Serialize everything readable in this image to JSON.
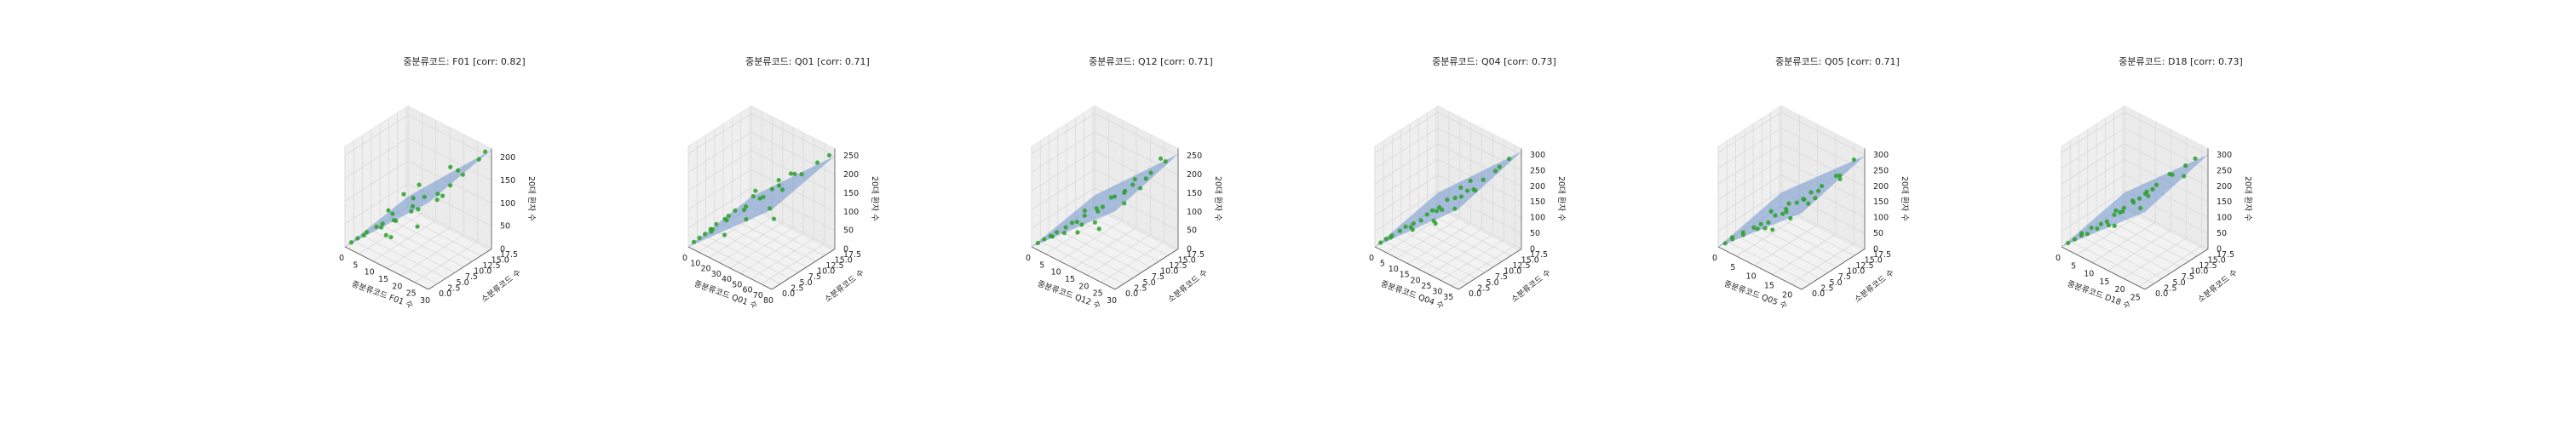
{
  "colors": {
    "points": "#2ca02c",
    "plane": "#6f93cc",
    "pane": "#f2f2f2",
    "grid": "#d9d9d9",
    "axis": "#555555"
  },
  "chart_data": [
    {
      "type": "scatter",
      "title": "중분류코드: F01 [corr: 0.82]",
      "xlabel": "중분류코드 F01 수",
      "ylabel": "소분류코드 수",
      "zlabel": "20대 환자 수",
      "xlim": [
        0,
        30
      ],
      "ylim": [
        0,
        18
      ],
      "zlim": [
        0,
        220
      ],
      "xticks": [
        "0",
        "5",
        "10",
        "15",
        "20",
        "25",
        "30"
      ],
      "yticks": [
        "0.0",
        "2.5",
        "5.0",
        "7.5",
        "10.0",
        "12.5",
        "15.0",
        "17.5"
      ],
      "zticks": [
        "0",
        "50",
        "100",
        "150",
        "200"
      ],
      "plane": {
        "intercept": -5,
        "slope_x": 6.5,
        "slope_y": 1.5
      },
      "points": [
        [
          1,
          1,
          8
        ],
        [
          2,
          2,
          15
        ],
        [
          3,
          3,
          20
        ],
        [
          4,
          3,
          30
        ],
        [
          5,
          5,
          35
        ],
        [
          6,
          6,
          40
        ],
        [
          7,
          8,
          55
        ],
        [
          8,
          4,
          48
        ],
        [
          10,
          6,
          60
        ],
        [
          12,
          5,
          70
        ],
        [
          13,
          9,
          85
        ],
        [
          15,
          7,
          90
        ],
        [
          16,
          10,
          110
        ],
        [
          18,
          12,
          100
        ],
        [
          20,
          5,
          120
        ],
        [
          22,
          9,
          140
        ],
        [
          24,
          11,
          155
        ],
        [
          26,
          13,
          175
        ],
        [
          28,
          16,
          200
        ],
        [
          9,
          14,
          95
        ],
        [
          11,
          3,
          45
        ],
        [
          14,
          2,
          55
        ],
        [
          17,
          6,
          130
        ],
        [
          19,
          15,
          160
        ],
        [
          21,
          4,
          90
        ],
        [
          6,
          12,
          75
        ],
        [
          3,
          10,
          40
        ],
        [
          25,
          8,
          150
        ],
        [
          29,
          17,
          215
        ],
        [
          23,
          14,
          170
        ]
      ]
    },
    {
      "type": "scatter",
      "title": "중분류코드: Q01 [corr: 0.71]",
      "xlabel": "중분류코드 Q01 수",
      "ylabel": "소분류코드 수",
      "zlabel": "20대 환자 수",
      "xlim": [
        0,
        80
      ],
      "ylim": [
        0,
        18
      ],
      "zlim": [
        0,
        270
      ],
      "xticks": [
        "0",
        "10",
        "20",
        "30",
        "40",
        "50",
        "60",
        "70",
        "80"
      ],
      "yticks": [
        "0.0",
        "2.5",
        "5.0",
        "7.5",
        "10.0",
        "12.5",
        "15.0",
        "17.5"
      ],
      "zticks": [
        "0",
        "50",
        "100",
        "150",
        "200",
        "250"
      ],
      "plane": {
        "intercept": -10,
        "slope_x": 2.8,
        "slope_y": 2.0
      },
      "points": [
        [
          2,
          1,
          10
        ],
        [
          4,
          2,
          18
        ],
        [
          6,
          3,
          25
        ],
        [
          8,
          4,
          35
        ],
        [
          10,
          5,
          45
        ],
        [
          12,
          3,
          40
        ],
        [
          15,
          6,
          60
        ],
        [
          18,
          8,
          75
        ],
        [
          20,
          5,
          70
        ],
        [
          25,
          9,
          90
        ],
        [
          30,
          7,
          100
        ],
        [
          35,
          10,
          120
        ],
        [
          40,
          12,
          140
        ],
        [
          45,
          8,
          150
        ],
        [
          50,
          11,
          170
        ],
        [
          55,
          14,
          190
        ],
        [
          60,
          9,
          185
        ],
        [
          65,
          13,
          210
        ],
        [
          70,
          16,
          230
        ],
        [
          78,
          17,
          255
        ],
        [
          5,
          10,
          30
        ],
        [
          14,
          15,
          80
        ],
        [
          28,
          2,
          60
        ],
        [
          42,
          4,
          110
        ],
        [
          58,
          6,
          150
        ],
        [
          22,
          12,
          95
        ],
        [
          33,
          16,
          130
        ],
        [
          48,
          15,
          175
        ],
        [
          72,
          3,
          160
        ],
        [
          3,
          6,
          15
        ]
      ]
    },
    {
      "type": "scatter",
      "title": "중분류코드: Q12 [corr: 0.71]",
      "xlabel": "중분류코드 Q12 수",
      "ylabel": "소분류코드 수",
      "zlabel": "20대 환자 수",
      "xlim": [
        0,
        30
      ],
      "ylim": [
        0,
        18
      ],
      "zlim": [
        0,
        270
      ],
      "xticks": [
        "0",
        "5",
        "10",
        "15",
        "20",
        "25",
        "30"
      ],
      "yticks": [
        "0.0",
        "2.5",
        "5.0",
        "7.5",
        "10.0",
        "12.5",
        "15.0",
        "17.5"
      ],
      "zticks": [
        "0",
        "50",
        "100",
        "150",
        "200",
        "250"
      ],
      "plane": {
        "intercept": -15,
        "slope_x": 7.5,
        "slope_y": 2.5
      },
      "points": [
        [
          1,
          1,
          8
        ],
        [
          2,
          2,
          16
        ],
        [
          3,
          3,
          22
        ],
        [
          4,
          4,
          30
        ],
        [
          5,
          2,
          35
        ],
        [
          6,
          5,
          45
        ],
        [
          7,
          6,
          55
        ],
        [
          8,
          3,
          50
        ],
        [
          9,
          8,
          70
        ],
        [
          10,
          5,
          75
        ],
        [
          12,
          9,
          95
        ],
        [
          13,
          4,
          85
        ],
        [
          15,
          7,
          110
        ],
        [
          16,
          11,
          130
        ],
        [
          18,
          6,
          140
        ],
        [
          20,
          13,
          165
        ],
        [
          22,
          9,
          175
        ],
        [
          24,
          15,
          200
        ],
        [
          26,
          12,
          210
        ],
        [
          28,
          16,
          240
        ],
        [
          11,
          14,
          90
        ],
        [
          14,
          2,
          80
        ],
        [
          17,
          16,
          150
        ],
        [
          19,
          3,
          120
        ],
        [
          21,
          10,
          170
        ],
        [
          23,
          1,
          130
        ],
        [
          25,
          17,
          230
        ],
        [
          27,
          5,
          190
        ],
        [
          4,
          12,
          40
        ],
        [
          29,
          8,
          220
        ]
      ]
    },
    {
      "type": "scatter",
      "title": "중분류코드: Q04 [corr: 0.73]",
      "xlabel": "중분류코드 Q04 수",
      "ylabel": "소분류코드 수",
      "zlabel": "20대 환자 수",
      "xlim": [
        0,
        38
      ],
      "ylim": [
        0,
        18
      ],
      "zlim": [
        0,
        320
      ],
      "xticks": [
        "0",
        "5",
        "10",
        "15",
        "20",
        "25",
        "30",
        "35"
      ],
      "yticks": [
        "0.0",
        "2.5",
        "5.0",
        "7.5",
        "10.0",
        "12.5",
        "15.0",
        "17.5"
      ],
      "zticks": [
        "0",
        "50",
        "100",
        "150",
        "200",
        "250",
        "300"
      ],
      "plane": {
        "intercept": -10,
        "slope_x": 7.0,
        "slope_y": 3.0
      },
      "points": [
        [
          1,
          1,
          10
        ],
        [
          2,
          2,
          18
        ],
        [
          3,
          3,
          25
        ],
        [
          4,
          2,
          30
        ],
        [
          5,
          4,
          40
        ],
        [
          6,
          5,
          50
        ],
        [
          8,
          6,
          60
        ],
        [
          10,
          4,
          70
        ],
        [
          11,
          8,
          85
        ],
        [
          13,
          5,
          95
        ],
        [
          15,
          9,
          115
        ],
        [
          17,
          7,
          125
        ],
        [
          19,
          11,
          145
        ],
        [
          21,
          6,
          150
        ],
        [
          23,
          12,
          175
        ],
        [
          25,
          9,
          185
        ],
        [
          27,
          14,
          210
        ],
        [
          29,
          10,
          215
        ],
        [
          31,
          15,
          245
        ],
        [
          34,
          17,
          280
        ],
        [
          36,
          13,
          290
        ],
        [
          7,
          12,
          55
        ],
        [
          9,
          15,
          75
        ],
        [
          14,
          2,
          90
        ],
        [
          18,
          16,
          160
        ],
        [
          22,
          3,
          140
        ],
        [
          26,
          1,
          160
        ],
        [
          30,
          4,
          200
        ],
        [
          33,
          8,
          240
        ],
        [
          12,
          17,
          110
        ]
      ]
    },
    {
      "type": "scatter",
      "title": "중분류코드: Q05 [corr: 0.71]",
      "xlabel": "중분류코드 Q05 수",
      "ylabel": "소분류코드 수",
      "zlabel": "20대 환자 수",
      "xlim": [
        0,
        23
      ],
      "ylim": [
        0,
        18
      ],
      "zlim": [
        0,
        320
      ],
      "xticks": [
        "0",
        "5",
        "10",
        "15",
        "20"
      ],
      "yticks": [
        "0.0",
        "2.5",
        "5.0",
        "7.5",
        "10.0",
        "12.5",
        "15.0",
        "17.5"
      ],
      "zticks": [
        "0",
        "50",
        "100",
        "150",
        "200",
        "250",
        "300"
      ],
      "plane": {
        "intercept": -10,
        "slope_x": 11.0,
        "slope_y": 3.0
      },
      "points": [
        [
          1,
          1,
          10
        ],
        [
          1,
          3,
          15
        ],
        [
          2,
          2,
          22
        ],
        [
          3,
          4,
          35
        ],
        [
          4,
          3,
          40
        ],
        [
          5,
          5,
          55
        ],
        [
          6,
          6,
          65
        ],
        [
          7,
          4,
          70
        ],
        [
          8,
          8,
          90
        ],
        [
          9,
          5,
          95
        ],
        [
          10,
          9,
          115
        ],
        [
          11,
          7,
          120
        ],
        [
          12,
          10,
          140
        ],
        [
          13,
          6,
          145
        ],
        [
          14,
          12,
          170
        ],
        [
          15,
          9,
          175
        ],
        [
          16,
          13,
          195
        ],
        [
          17,
          11,
          200
        ],
        [
          18,
          15,
          225
        ],
        [
          19,
          8,
          210
        ],
        [
          20,
          14,
          245
        ],
        [
          21,
          17,
          280
        ],
        [
          22,
          12,
          260
        ],
        [
          3,
          12,
          45
        ],
        [
          5,
          15,
          60
        ],
        [
          8,
          16,
          85
        ],
        [
          11,
          2,
          110
        ],
        [
          14,
          1,
          130
        ],
        [
          17,
          3,
          170
        ],
        [
          20,
          5,
          220
        ]
      ]
    },
    {
      "type": "scatter",
      "title": "중분류코드: D18 [corr: 0.73]",
      "xlabel": "중분류코드 D18 수",
      "ylabel": "소분류코드 수",
      "zlabel": "20대 환자 수",
      "xlim": [
        0,
        27
      ],
      "ylim": [
        0,
        18
      ],
      "zlim": [
        0,
        320
      ],
      "xticks": [
        "0",
        "5",
        "10",
        "15",
        "20",
        "25"
      ],
      "yticks": [
        "0.0",
        "2.5",
        "5.0",
        "7.5",
        "10.0",
        "12.5",
        "15.0",
        "17.5"
      ],
      "zticks": [
        "0",
        "50",
        "100",
        "150",
        "200",
        "250",
        "300"
      ],
      "plane": {
        "intercept": -10,
        "slope_x": 9.5,
        "slope_y": 3.0
      },
      "points": [
        [
          1,
          1,
          10
        ],
        [
          2,
          2,
          20
        ],
        [
          2,
          4,
          25
        ],
        [
          3,
          3,
          30
        ],
        [
          4,
          5,
          45
        ],
        [
          5,
          3,
          45
        ],
        [
          6,
          6,
          60
        ],
        [
          7,
          4,
          65
        ],
        [
          8,
          8,
          85
        ],
        [
          9,
          5,
          90
        ],
        [
          10,
          9,
          110
        ],
        [
          11,
          7,
          115
        ],
        [
          12,
          10,
          130
        ],
        [
          13,
          6,
          135
        ],
        [
          14,
          12,
          160
        ],
        [
          15,
          9,
          165
        ],
        [
          16,
          13,
          185
        ],
        [
          17,
          11,
          190
        ],
        [
          18,
          15,
          215
        ],
        [
          19,
          8,
          200
        ],
        [
          20,
          14,
          230
        ],
        [
          22,
          16,
          255
        ],
        [
          24,
          17,
          280
        ],
        [
          26,
          12,
          270
        ],
        [
          4,
          12,
          50
        ],
        [
          6,
          15,
          70
        ],
        [
          9,
          16,
          100
        ],
        [
          13,
          2,
          120
        ],
        [
          16,
          1,
          140
        ],
        [
          21,
          4,
          200
        ]
      ]
    }
  ]
}
